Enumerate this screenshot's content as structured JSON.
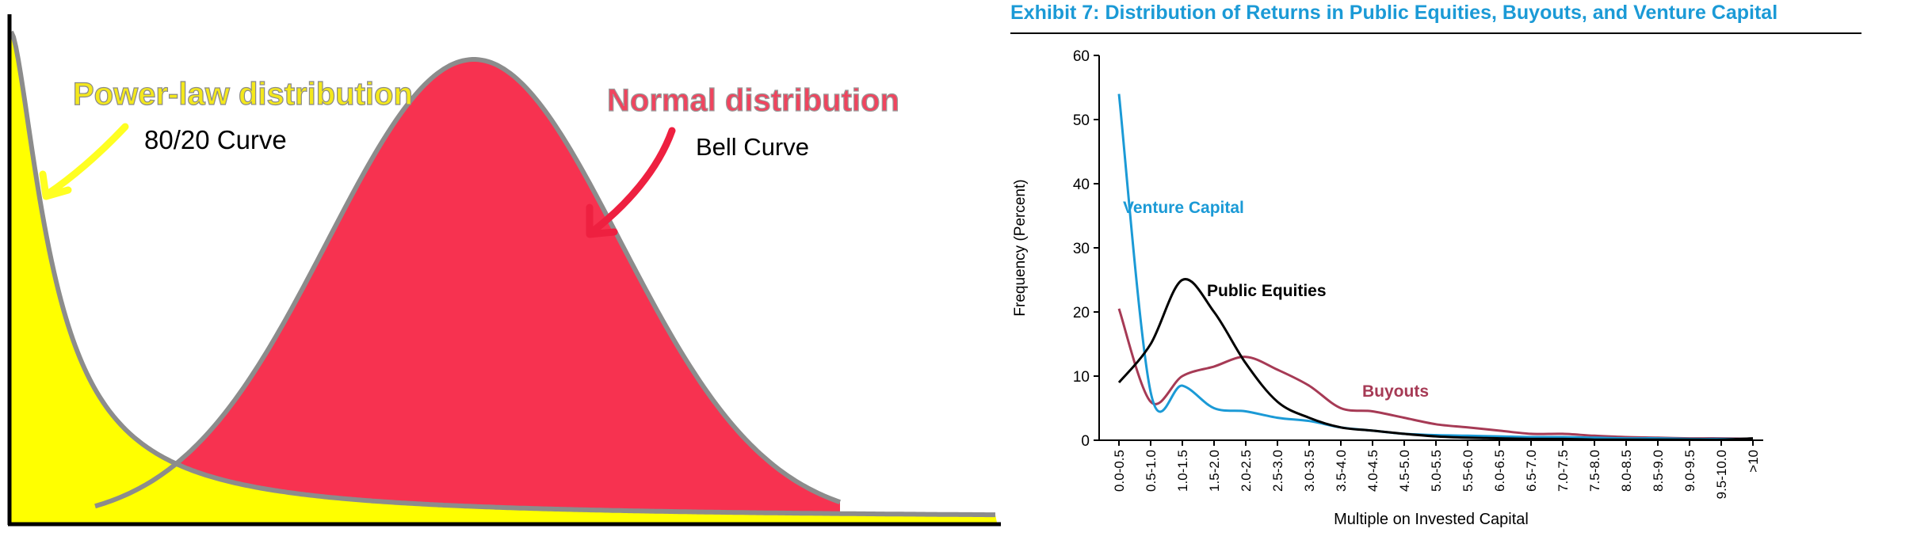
{
  "chart_data": [
    {
      "type": "area",
      "series": [
        {
          "name": "Power-law distribution",
          "subtitle": "80/20 Curve",
          "shape": "power-law",
          "color": "#ffff00",
          "label_color": "#f4e81c"
        },
        {
          "name": "Normal distribution",
          "subtitle": "Bell Curve",
          "shape": "normal",
          "color": "#f73250",
          "label_color": "#f0445e"
        }
      ],
      "outline_color": "#8c8c8c",
      "arrow_colors": [
        "#ffff22",
        "#ee2040"
      ]
    },
    {
      "type": "line",
      "title": "Exhibit 7: Distribution of Returns in Public Equities, Buyouts, and Venture Capital",
      "title_color": "#1b9ad6",
      "xlabel": "Multiple on Invested Capital",
      "ylabel": "Frequency (Percent)",
      "ylim": [
        0,
        60
      ],
      "yticks": [
        0,
        10,
        20,
        30,
        40,
        50,
        60
      ],
      "grid": false,
      "legend": "inline labels",
      "categories": [
        "0.0-0.5",
        "0.5-1.0",
        "1.0-1.5",
        "1.5-2.0",
        "2.0-2.5",
        "2.5-3.0",
        "3.0-3.5",
        "3.5-4.0",
        "4.0-4.5",
        "4.5-5.0",
        "5.0-5.5",
        "5.5-6.0",
        "6.0-6.5",
        "6.5-7.0",
        "7.0-7.5",
        "7.5-8.0",
        "8.0-8.5",
        "8.5-9.0",
        "9.0-9.5",
        "9.5-10.0",
        ">10"
      ],
      "series": [
        {
          "name": "Venture Capital",
          "color": "#1b9ad6",
          "values": [
            54,
            7.5,
            8.5,
            5,
            4.5,
            3.5,
            3,
            2,
            1.5,
            1,
            0.8,
            0.7,
            0.6,
            0.5,
            0.5,
            0.4,
            0.3,
            0.3,
            0.2,
            0.2,
            0.2
          ]
        },
        {
          "name": "Public Equities",
          "color": "#000000",
          "values": [
            9,
            15,
            25,
            20,
            12,
            6,
            3.5,
            2,
            1.5,
            1,
            0.6,
            0.4,
            0.3,
            0.2,
            0.2,
            0.1,
            0.1,
            0.1,
            0.1,
            0.1,
            0.3
          ]
        },
        {
          "name": "Buyouts",
          "color": "#a63a55",
          "values": [
            20.5,
            6,
            10,
            11.5,
            13,
            11,
            8.5,
            5,
            4.5,
            3.5,
            2.5,
            2,
            1.5,
            1,
            1,
            0.7,
            0.5,
            0.4,
            0.3,
            0.3,
            0.2
          ]
        }
      ]
    }
  ]
}
